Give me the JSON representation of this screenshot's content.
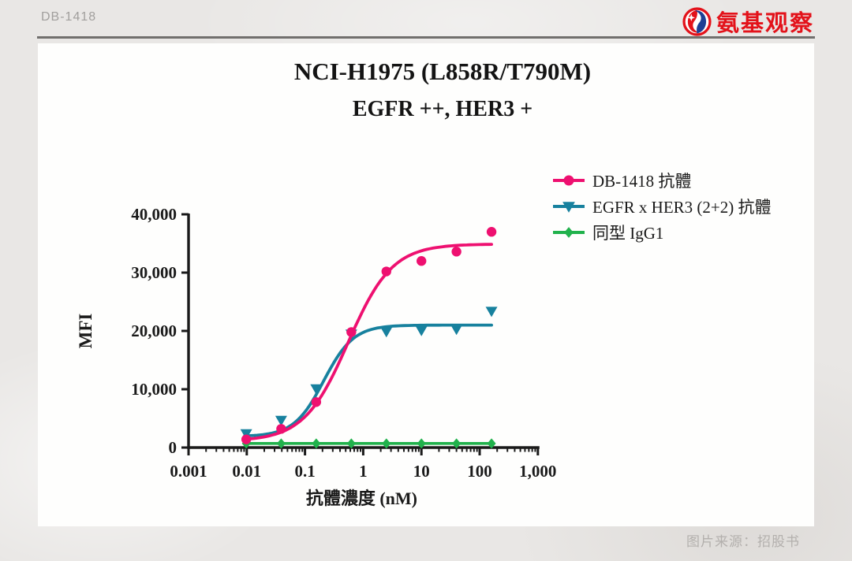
{
  "header": {
    "doc_label": "DB-1418",
    "brand_name": "氨基观察",
    "brand_red": "#e3121a",
    "brand_blue": "#1d3f94"
  },
  "footer": {
    "source_caption": "图片来源：招股书"
  },
  "chart_data": {
    "type": "scatter",
    "title_line1": "NCI-H1975 (L858R/T790M)",
    "title_line2": "EGFR ++, HER3 +",
    "xlabel": "抗體濃度 (nM)",
    "ylabel": "MFI",
    "x_scale": "log10",
    "xlim": [
      0.001,
      1000
    ],
    "ylim": [
      0,
      40000
    ],
    "x_ticks": [
      0.001,
      0.01,
      0.1,
      1,
      10,
      100,
      1000
    ],
    "x_tick_labels": [
      "0.001",
      "0.01",
      "0.1",
      "1",
      "10",
      "100",
      "1,000"
    ],
    "y_ticks": [
      0,
      10000,
      20000,
      30000,
      40000
    ],
    "y_tick_labels": [
      "0",
      "10,000",
      "20,000",
      "30,000",
      "40,000"
    ],
    "legend_position": "top-right",
    "grid": false,
    "concentrations_nM": [
      0.0098,
      0.039,
      0.156,
      0.625,
      2.5,
      10,
      40,
      160
    ],
    "series": [
      {
        "name": "DB-1418 抗體",
        "color": "#ee1070",
        "marker": "circle",
        "values": [
          1400,
          3200,
          7800,
          19800,
          30200,
          32000,
          33600,
          37000
        ],
        "fit": {
          "bottom": 1100,
          "top": 34900,
          "ec50": 0.55,
          "hill": 1.15
        }
      },
      {
        "name": "EGFR x HER3 (2+2) 抗體",
        "color": "#17819e",
        "marker": "triangle-down",
        "values": [
          2400,
          4700,
          10100,
          19500,
          19900,
          20100,
          20300,
          23400
        ],
        "fit": {
          "bottom": 1900,
          "top": 21000,
          "ec50": 0.21,
          "hill": 1.7
        }
      },
      {
        "name": "同型 IgG1",
        "color": "#21b24c",
        "marker": "diamond",
        "values": [
          700,
          700,
          700,
          700,
          700,
          700,
          700,
          700
        ],
        "fit": {
          "bottom": 700,
          "top": 700,
          "ec50": 1,
          "hill": 1
        }
      }
    ]
  }
}
